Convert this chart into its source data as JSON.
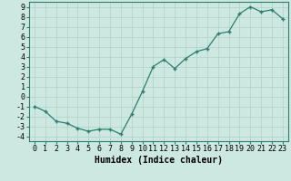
{
  "x": [
    0,
    1,
    2,
    3,
    4,
    5,
    6,
    7,
    8,
    9,
    10,
    11,
    12,
    13,
    14,
    15,
    16,
    17,
    18,
    19,
    20,
    21,
    22,
    23
  ],
  "y": [
    -1.0,
    -1.5,
    -2.5,
    -2.7,
    -3.2,
    -3.5,
    -3.3,
    -3.3,
    -3.8,
    -1.8,
    0.5,
    3.0,
    3.7,
    2.8,
    3.8,
    4.5,
    4.8,
    6.3,
    6.5,
    8.3,
    9.0,
    8.5,
    8.7,
    7.8
  ],
  "line_color": "#2e7d6e",
  "marker_color": "#2e7d6e",
  "bg_color": "#cce8e0",
  "grid_color": "#b0d0c8",
  "xlabel": "Humidex (Indice chaleur)",
  "xlabel_fontsize": 7,
  "tick_fontsize": 6,
  "ylim": [
    -4.5,
    9.5
  ],
  "xlim": [
    -0.5,
    23.5
  ],
  "yticks": [
    -4,
    -3,
    -2,
    -1,
    0,
    1,
    2,
    3,
    4,
    5,
    6,
    7,
    8,
    9
  ],
  "xticks": [
    0,
    1,
    2,
    3,
    4,
    5,
    6,
    7,
    8,
    9,
    10,
    11,
    12,
    13,
    14,
    15,
    16,
    17,
    18,
    19,
    20,
    21,
    22,
    23
  ]
}
